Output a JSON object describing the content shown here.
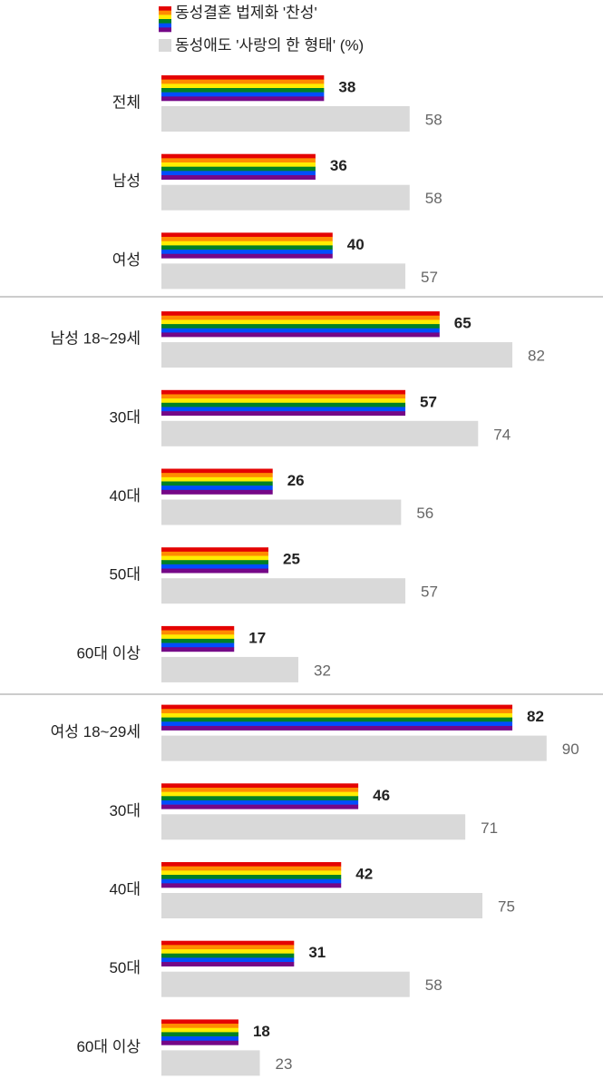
{
  "chart_data": {
    "type": "hbar",
    "categories": [
      "전체",
      "남성",
      "여성",
      "남성 18~29세",
      "30대",
      "40대",
      "50대",
      "60대 이상",
      "여성 18~29세",
      "30대",
      "40대",
      "50대",
      "60대 이상"
    ],
    "series": [
      {
        "name": "동성결혼 법제화 '찬성'",
        "color": [
          "#e40303",
          "#ff8c00",
          "#ffed00",
          "#008026",
          "#004dff",
          "#750787"
        ],
        "label_color": "#1a9be0",
        "values": [
          38,
          36,
          40,
          65,
          57,
          26,
          25,
          17,
          82,
          46,
          42,
          31,
          18
        ]
      },
      {
        "name": "동성애도 '사랑의 한 형태' (%)",
        "color": "#d9d9d9",
        "label_color": "#666666",
        "values": [
          58,
          58,
          57,
          82,
          74,
          56,
          57,
          32,
          90,
          71,
          75,
          58,
          23
        ]
      }
    ],
    "xlim": [
      0,
      100
    ]
  }
}
